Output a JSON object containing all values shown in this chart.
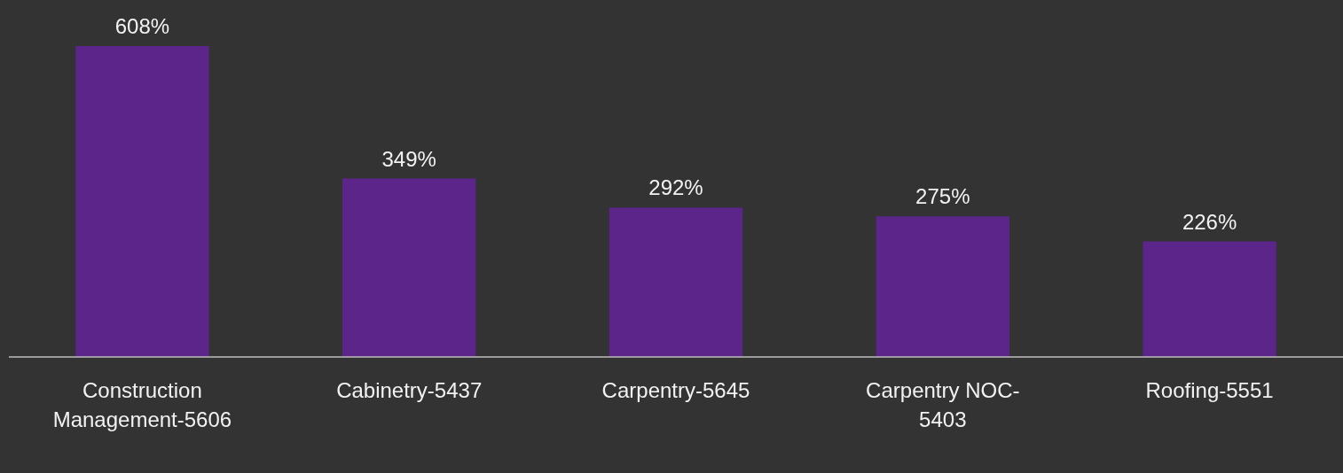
{
  "chart_data": {
    "type": "bar",
    "categories": [
      "Construction Management-5606",
      "Cabinetry-5437",
      "Carpentry-5645",
      "Carpentry NOC-5403",
      "Roofing-5551"
    ],
    "values": [
      608,
      349,
      292,
      275,
      226
    ],
    "value_labels": [
      "608%",
      "349%",
      "292%",
      "275%",
      "226%"
    ],
    "color": "#5b2589"
  }
}
